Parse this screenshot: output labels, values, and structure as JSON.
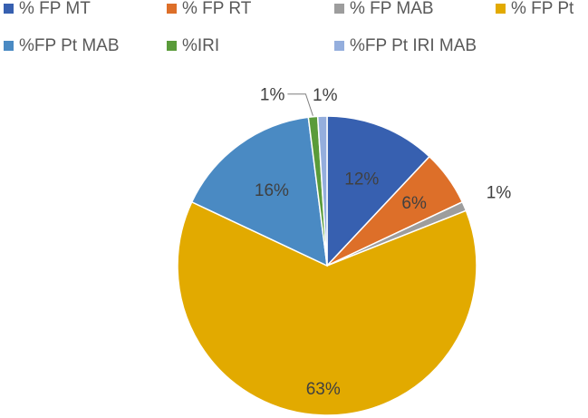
{
  "chart_data": {
    "type": "pie",
    "title": "",
    "legend_position": "top",
    "slices": [
      {
        "name": "% FP MT",
        "value": 12,
        "label": "12%",
        "color": "#3760b0"
      },
      {
        "name": "% FP RT",
        "value": 6,
        "label": "6%",
        "color": "#dd6f29"
      },
      {
        "name": "% FP MAB",
        "value": 1,
        "label": "1%",
        "color": "#9d9d9d"
      },
      {
        "name": "% FP Pt",
        "value": 63,
        "label": "63%",
        "color": "#e2aa00"
      },
      {
        "name": "%FP Pt MAB",
        "value": 16,
        "label": "16%",
        "color": "#4a8ac3"
      },
      {
        "name": "%IRI",
        "value": 1,
        "label": "1%",
        "color": "#5a9b3a"
      },
      {
        "name": "%FP Pt IRI MAB",
        "value": 1,
        "label": "1%",
        "color": "#94aedd"
      }
    ]
  }
}
